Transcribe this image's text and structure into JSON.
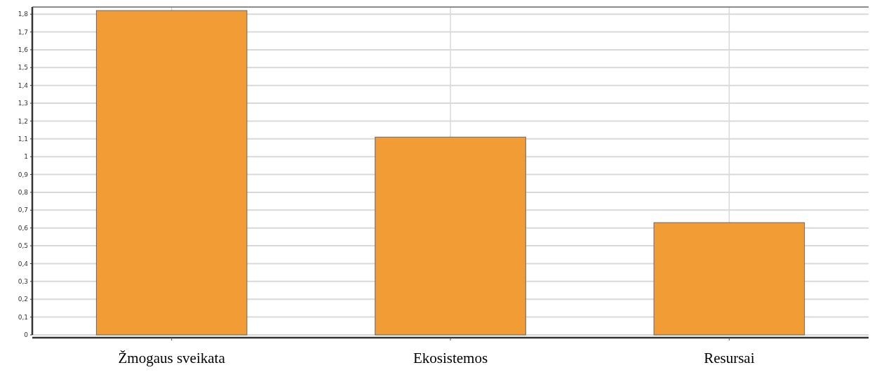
{
  "chart_data": {
    "type": "bar",
    "categories": [
      "Žmogaus sveikata",
      "Ekosistemos",
      "Resursai"
    ],
    "values": [
      1.82,
      1.11,
      0.63
    ],
    "color": "#f29c35",
    "ylim": [
      0,
      1.84
    ],
    "yticks": [
      {
        "value": 0,
        "label": "0"
      },
      {
        "value": 0.1,
        "label": "0,1"
      },
      {
        "value": 0.2,
        "label": "0,2"
      },
      {
        "value": 0.3,
        "label": "0,3"
      },
      {
        "value": 0.4,
        "label": "0,4"
      },
      {
        "value": 0.5,
        "label": "0,5"
      },
      {
        "value": 0.6,
        "label": "0,6"
      },
      {
        "value": 0.7,
        "label": "0,7"
      },
      {
        "value": 0.8,
        "label": "0,8"
      },
      {
        "value": 0.9,
        "label": "0,9"
      },
      {
        "value": 1,
        "label": "1"
      },
      {
        "value": 1.1,
        "label": "1,1"
      },
      {
        "value": 1.2,
        "label": "1,2"
      },
      {
        "value": 1.3,
        "label": "1,3"
      },
      {
        "value": 1.4,
        "label": "1,4"
      },
      {
        "value": 1.5,
        "label": "1,5"
      },
      {
        "value": 1.6,
        "label": "1,6"
      },
      {
        "value": 1.7,
        "label": "1,7"
      },
      {
        "value": 1.8,
        "label": "1,8"
      }
    ],
    "grid": true
  }
}
